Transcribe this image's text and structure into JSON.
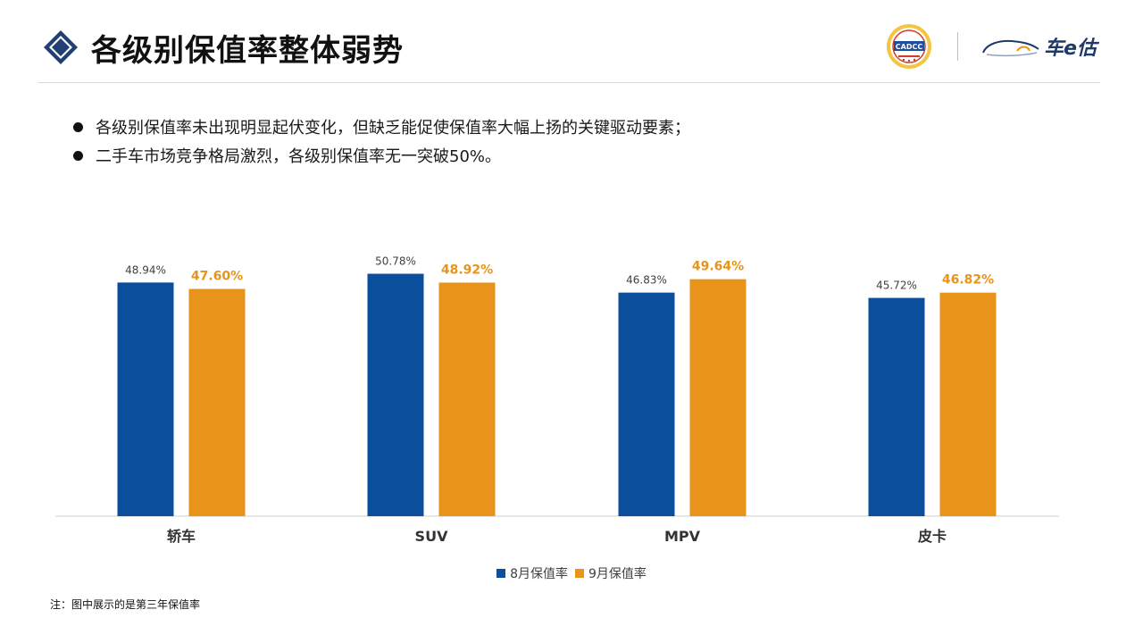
{
  "header": {
    "title": "各级别保值率整体弱势",
    "icons": [
      "diamond-icon"
    ],
    "logos": {
      "seal_text": "CADCC",
      "brand_text": "车e估"
    }
  },
  "bullets": [
    "各级别保值率未出现明显起伏变化，但缺乏能促使保值率大幅上扬的关键驱动要素；",
    "二手车市场竞争格局激烈，各级别保值率无一突破50%。"
  ],
  "colors": {
    "series_aug": "#0b4f9c",
    "series_sep": "#e8941a",
    "label_sep": "#e8941a",
    "label_aug": "#404040"
  },
  "chart_data": {
    "type": "bar",
    "categories": [
      "轿车",
      "SUV",
      "MPV",
      "皮卡"
    ],
    "series": [
      {
        "name": "8月保值率",
        "values": [
          48.94,
          50.78,
          46.83,
          45.72
        ],
        "labels": [
          "48.94%",
          "50.78%",
          "46.83%",
          "45.72%"
        ]
      },
      {
        "name": "9月保值率",
        "values": [
          47.6,
          48.92,
          49.64,
          46.82
        ],
        "labels": [
          "47.60%",
          "48.92%",
          "49.64%",
          "46.82%"
        ]
      }
    ],
    "ylim": [
      0,
      52
    ],
    "grid": false,
    "legend_position": "bottom"
  },
  "footnote": "注：图中展示的是第三年保值率"
}
